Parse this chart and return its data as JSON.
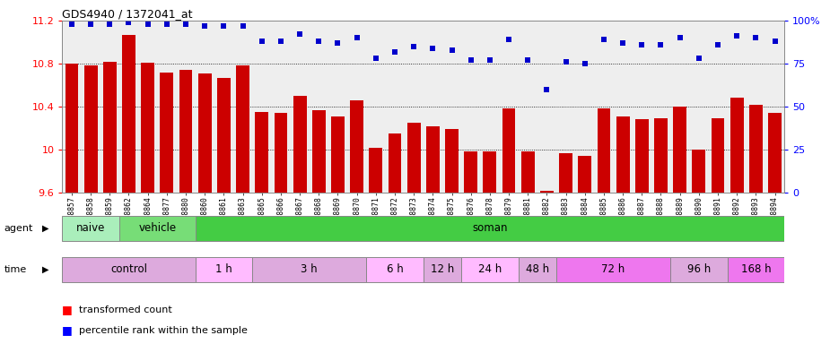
{
  "title": "GDS4940 / 1372041_at",
  "samples": [
    "GSM338857",
    "GSM338858",
    "GSM338859",
    "GSM338862",
    "GSM338864",
    "GSM338877",
    "GSM338880",
    "GSM338860",
    "GSM338861",
    "GSM338863",
    "GSM338865",
    "GSM338866",
    "GSM338867",
    "GSM338868",
    "GSM338869",
    "GSM338870",
    "GSM338871",
    "GSM338872",
    "GSM338873",
    "GSM338874",
    "GSM338875",
    "GSM338876",
    "GSM338878",
    "GSM338879",
    "GSM338881",
    "GSM338882",
    "GSM338883",
    "GSM338884",
    "GSM338885",
    "GSM338886",
    "GSM338887",
    "GSM338888",
    "GSM338889",
    "GSM338890",
    "GSM338891",
    "GSM338892",
    "GSM338893",
    "GSM338894"
  ],
  "bar_values": [
    10.8,
    10.78,
    10.82,
    11.07,
    10.81,
    10.72,
    10.74,
    10.71,
    10.67,
    10.78,
    10.35,
    10.34,
    10.5,
    10.37,
    10.31,
    10.46,
    10.02,
    10.15,
    10.25,
    10.22,
    10.19,
    9.98,
    9.98,
    10.38,
    9.98,
    9.62,
    9.97,
    9.94,
    10.38,
    10.31,
    10.28,
    10.29,
    10.4,
    10.0,
    10.29,
    10.48,
    10.42,
    10.34
  ],
  "percentile_values": [
    98,
    98,
    98,
    99,
    98,
    98,
    98,
    97,
    97,
    97,
    88,
    88,
    92,
    88,
    87,
    90,
    78,
    82,
    85,
    84,
    83,
    77,
    77,
    89,
    77,
    60,
    76,
    75,
    89,
    87,
    86,
    86,
    90,
    78,
    86,
    91,
    90,
    88
  ],
  "ylim_min": 9.6,
  "ylim_max": 11.2,
  "yticks": [
    9.6,
    10.0,
    10.4,
    10.8,
    11.2
  ],
  "ytick_labels": [
    "9.6",
    "10",
    "10.4",
    "10.8",
    "11.2"
  ],
  "bar_color": "#cc0000",
  "dot_color": "#0000cc",
  "chart_bg": "#eeeeee",
  "agent_groups": [
    {
      "label": "naive",
      "start": 0,
      "end": 3,
      "color": "#aaeebb"
    },
    {
      "label": "vehicle",
      "start": 3,
      "end": 7,
      "color": "#77dd77"
    },
    {
      "label": "soman",
      "start": 7,
      "end": 38,
      "color": "#44cc44"
    }
  ],
  "time_groups": [
    {
      "label": "control",
      "start": 0,
      "end": 7,
      "color": "#ddaadd"
    },
    {
      "label": "1 h",
      "start": 7,
      "end": 10,
      "color": "#ffbbff"
    },
    {
      "label": "3 h",
      "start": 10,
      "end": 16,
      "color": "#ddaadd"
    },
    {
      "label": "6 h",
      "start": 16,
      "end": 19,
      "color": "#ffbbff"
    },
    {
      "label": "12 h",
      "start": 19,
      "end": 21,
      "color": "#ddaadd"
    },
    {
      "label": "24 h",
      "start": 21,
      "end": 24,
      "color": "#ffbbff"
    },
    {
      "label": "48 h",
      "start": 24,
      "end": 26,
      "color": "#ddaadd"
    },
    {
      "label": "72 h",
      "start": 26,
      "end": 32,
      "color": "#ee77ee"
    },
    {
      "label": "96 h",
      "start": 32,
      "end": 35,
      "color": "#ddaadd"
    },
    {
      "label": "168 h",
      "start": 35,
      "end": 38,
      "color": "#ee77ee"
    }
  ],
  "right_yticks": [
    0,
    25,
    50,
    75,
    100
  ],
  "right_ylabels": [
    "0",
    "25",
    "50",
    "75",
    "100%"
  ]
}
